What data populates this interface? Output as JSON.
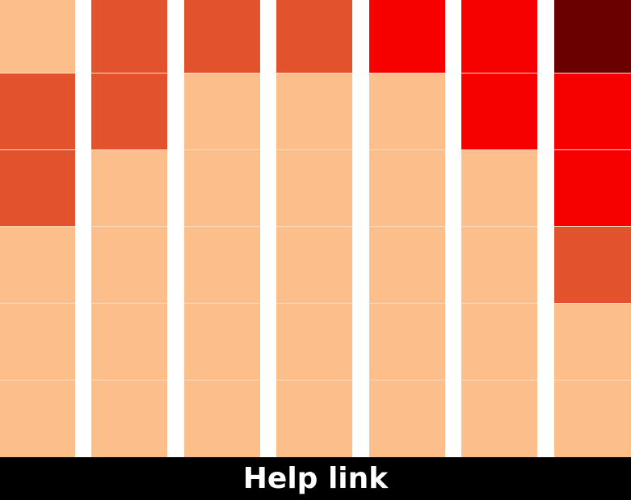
{
  "palette": {
    "light": "#fcbe8a",
    "medium": "#e2522d",
    "red": "#f60000",
    "dark": "#6a0000",
    "footer_bg": "#000000",
    "footer_text": "#ffffff"
  },
  "grid": {
    "columns": [
      [
        "light",
        "medium",
        "medium",
        "light",
        "light",
        "light"
      ],
      [
        "medium",
        "medium",
        "light",
        "light",
        "light",
        "light"
      ],
      [
        "medium",
        "light",
        "light",
        "light",
        "light",
        "light"
      ],
      [
        "medium",
        "light",
        "light",
        "light",
        "light",
        "light"
      ],
      [
        "red",
        "light",
        "light",
        "light",
        "light",
        "light"
      ],
      [
        "red",
        "red",
        "light",
        "light",
        "light",
        "light"
      ],
      [
        "dark",
        "red",
        "red",
        "medium",
        "light",
        "light"
      ]
    ]
  },
  "footer": {
    "help_label": "Help link"
  }
}
